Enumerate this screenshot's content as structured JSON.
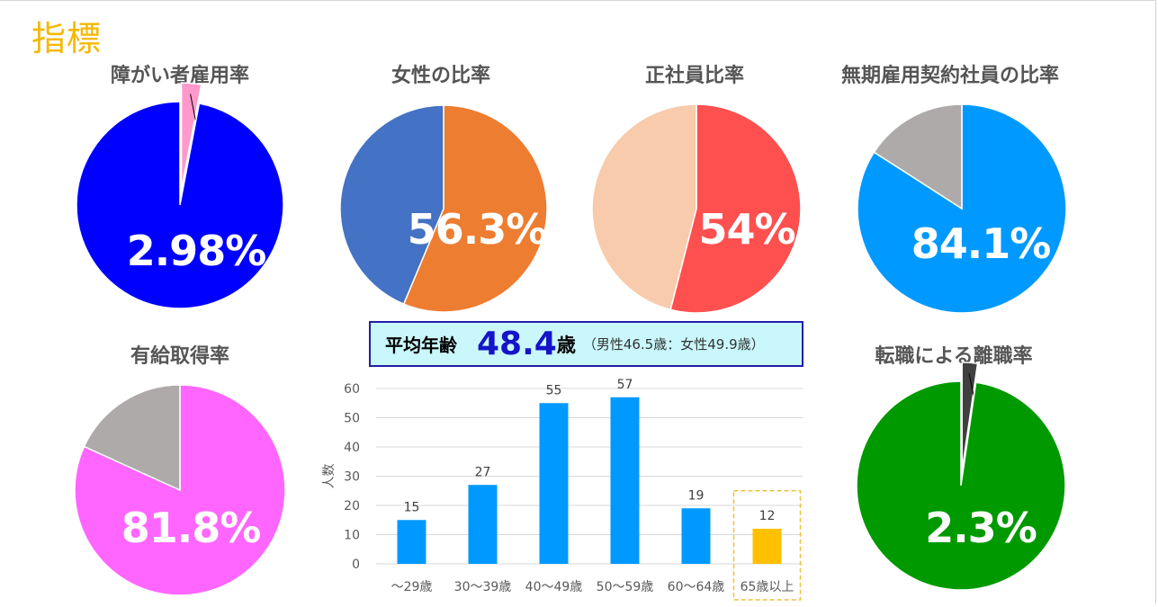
{
  "page_title": "指標",
  "colors": {
    "title_gold": "#F5B800",
    "text_gray": "#555555",
    "bar_blue": "#0099FF",
    "bar_highlight": "#FFC000",
    "highlight_box": "#F0C040",
    "age_box_fill": "#C9F7FB",
    "age_box_border": "#1F1FA8",
    "age_value_blue": "#1414C8"
  },
  "average_age": {
    "label": "平均年齢",
    "value": "48.4",
    "unit": "歳",
    "note": "（男性46.5歳：女性49.9歳）"
  },
  "chart_data": [
    {
      "type": "pie",
      "title": "障がい者雇用率",
      "label": "2.98%",
      "highlight_value": 2.98,
      "slices": [
        {
          "value": 2.98,
          "color": "#FF99CC",
          "exploded": true
        },
        {
          "value": 97.02,
          "color": "#0000FF"
        }
      ]
    },
    {
      "type": "pie",
      "title": "女性の比率",
      "label": "56.3%",
      "highlight_value": 56.3,
      "slices": [
        {
          "value": 56.3,
          "color": "#ED7D31"
        },
        {
          "value": 43.7,
          "color": "#4472C4"
        }
      ]
    },
    {
      "type": "pie",
      "title": "正社員比率",
      "label": "54%",
      "highlight_value": 54,
      "slices": [
        {
          "value": 54,
          "color": "#FF5050"
        },
        {
          "value": 46,
          "color": "#F8CBAD"
        }
      ]
    },
    {
      "type": "pie",
      "title": "無期雇用契約社員の比率",
      "label": "84.1%",
      "highlight_value": 84.1,
      "slices": [
        {
          "value": 84.1,
          "color": "#0099FF"
        },
        {
          "value": 15.9,
          "color": "#AEAAAA"
        }
      ]
    },
    {
      "type": "pie",
      "title": "有給取得率",
      "label": "81.8%",
      "highlight_value": 81.8,
      "slices": [
        {
          "value": 81.8,
          "color": "#FF66FF"
        },
        {
          "value": 18.2,
          "color": "#AEAAAA"
        }
      ]
    },
    {
      "type": "pie",
      "title": "転職による離職率",
      "label": "2.3%",
      "highlight_value": 2.3,
      "slices": [
        {
          "value": 2.3,
          "color": "#404040",
          "exploded": true
        },
        {
          "value": 97.7,
          "color": "#009900"
        }
      ]
    },
    {
      "type": "bar",
      "categories": [
        "～29歳",
        "30～39歳",
        "40～49歳",
        "50～59歳",
        "60～64歳",
        "65歳以上"
      ],
      "values": [
        15,
        27,
        55,
        57,
        19,
        12
      ],
      "highlight_category": "65歳以上",
      "ylabel": "人数",
      "ylim": [
        0,
        60
      ],
      "yticks": [
        0,
        10,
        20,
        30,
        40,
        50,
        60
      ],
      "grid": true
    }
  ]
}
